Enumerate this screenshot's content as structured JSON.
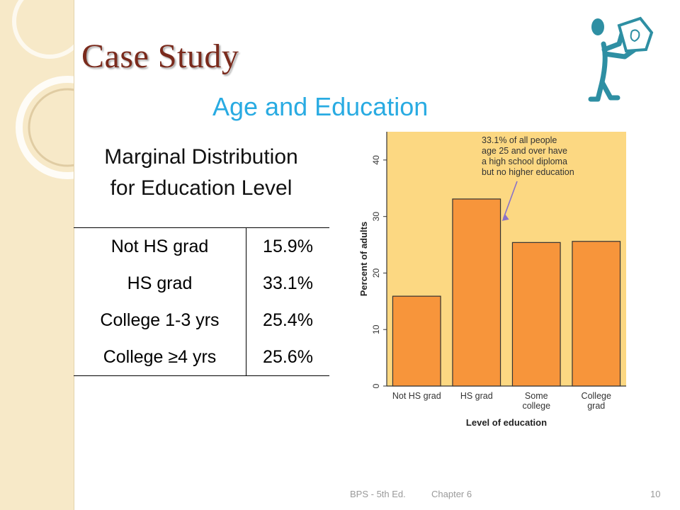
{
  "title": "Case Study",
  "subtitle": "Age and Education",
  "marginal_heading": [
    "Marginal Distribution",
    "for Education Level"
  ],
  "table": {
    "rows": [
      {
        "label": "Not HS grad",
        "value": "15.9%"
      },
      {
        "label": "HS grad",
        "value": "33.1%"
      },
      {
        "label": "College 1-3 yrs",
        "value": "25.4%"
      },
      {
        "label": "College ≥4 yrs",
        "value": "25.6%"
      }
    ]
  },
  "chart_data": {
    "type": "bar",
    "categories": [
      [
        "Not HS grad"
      ],
      [
        "HS grad"
      ],
      [
        "Some",
        "college"
      ],
      [
        "College",
        "grad"
      ]
    ],
    "values": [
      15.9,
      33.1,
      25.4,
      25.6
    ],
    "xlabel": "Level of education",
    "ylabel": "Percent of adults",
    "ylim": [
      0,
      45
    ],
    "yticks": [
      0,
      10,
      20,
      30,
      40
    ],
    "annotation": [
      "33.1% of all people",
      "age 25 and over have",
      "a high school diploma",
      "but no higher education"
    ],
    "colors": {
      "bar": "#f7953b",
      "background": "#fcd882",
      "arrow": "#8a72c8"
    }
  },
  "footer": {
    "book": "BPS - 5th Ed.",
    "chapter": "Chapter 6",
    "page": "10"
  }
}
